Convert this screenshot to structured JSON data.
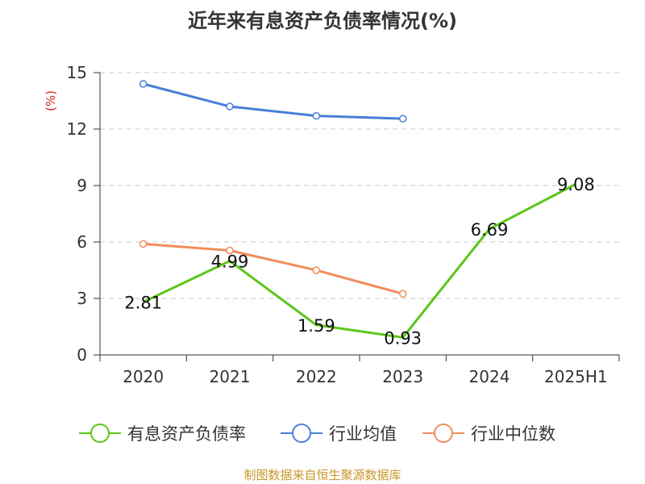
{
  "chart_data": {
    "type": "line",
    "title": "近年来有息资产负债率情况(%)",
    "ylabel": "(%)",
    "categories": [
      "2020",
      "2021",
      "2022",
      "2023",
      "2024",
      "2025H1"
    ],
    "ylim": [
      0,
      15
    ],
    "yticks": [
      0,
      3,
      6,
      9,
      12,
      15
    ],
    "grid": true,
    "legend_position": "bottom",
    "series": [
      {
        "name": "有息资产负债率",
        "color": "#5cc619",
        "values": [
          2.81,
          4.99,
          1.59,
          0.93,
          6.69,
          9.08
        ],
        "labels": [
          "2.81",
          "4.99",
          "1.59",
          "0.93",
          "6.69",
          "9.08"
        ]
      },
      {
        "name": "行业均值",
        "color": "#4a7fd9",
        "values": [
          14.4,
          13.2,
          12.7,
          12.55,
          null,
          null
        ]
      },
      {
        "name": "行业中位数",
        "color": "#f28d5a",
        "values": [
          5.9,
          5.55,
          4.5,
          3.25,
          null,
          null
        ]
      }
    ]
  },
  "source": "制图数据来自恒生聚源数据库"
}
